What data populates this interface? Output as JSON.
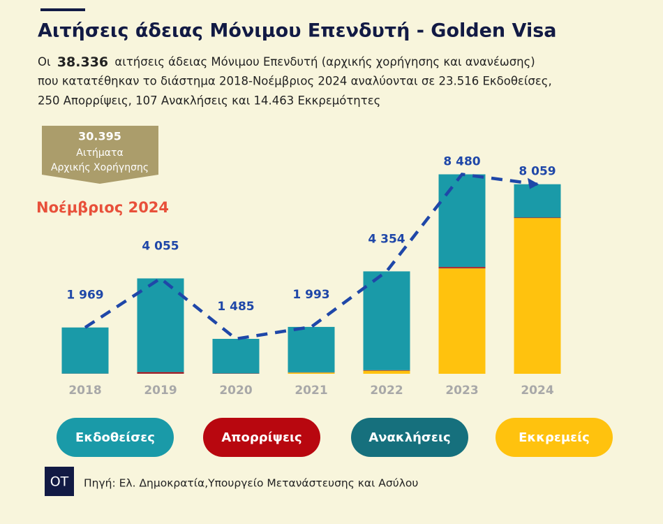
{
  "chart_data": {
    "type": "stacked-bar",
    "title": "Αιτήσεις άδειας Μόνιμου Επενδυτή - Golden Visa",
    "subtitle": {
      "lead": "Οι",
      "highlight": "38.336",
      "line1": "αιτήσεις άδειας Μόνιμου Επενδυτή (αρχικής χορήγησης και ανανέωσης)",
      "line2": "που κατατέθηκαν το διάστημα 2018-Νοέμβριος 2024 αναλύονται σε 23.516 Εκδοθείσες,",
      "line3": "250 Απορρίψεις, 107 Ανακλήσεις και 14.463 Εκκρεμότητες"
    },
    "badge": {
      "number": "30.395",
      "line1": "Αιτήματα",
      "line2": "Αρχικής Χορήγησης"
    },
    "date_note": "Νοέμβριος 2024",
    "categories": [
      "2018",
      "2019",
      "2020",
      "2021",
      "2022",
      "2023",
      "2024"
    ],
    "series": [
      {
        "name": "Εκδοθείσες",
        "color": "#1a9aa8",
        "values": [
          1960,
          3985,
          1470,
          1930,
          4200,
          3940,
          1419
        ]
      },
      {
        "name": "Απορρίψεις",
        "color": "#b8070f",
        "values": [
          5,
          60,
          10,
          8,
          20,
          50,
          20
        ]
      },
      {
        "name": "Ανακλήσεις",
        "color": "#16707d",
        "values": [
          4,
          10,
          5,
          5,
          4,
          10,
          0
        ]
      },
      {
        "name": "Εκκρεμείς",
        "color": "#ffc20e",
        "values": [
          0,
          0,
          0,
          50,
          130,
          4480,
          6620
        ]
      }
    ],
    "totals": [
      1969,
      4055,
      1485,
      1993,
      4354,
      8480,
      8059
    ],
    "value_labels": [
      "1 969",
      "4 055",
      "1 485",
      "1 993",
      "4 354",
      "8 480",
      "8 059"
    ],
    "trend_color": "#1f47a8",
    "ylim": [
      0,
      9000
    ],
    "source_logo": "OT",
    "source": "Πηγή: Ελ. Δημοκρατία,Υπουργείο Μετανάστευσης και Ασύλου"
  }
}
